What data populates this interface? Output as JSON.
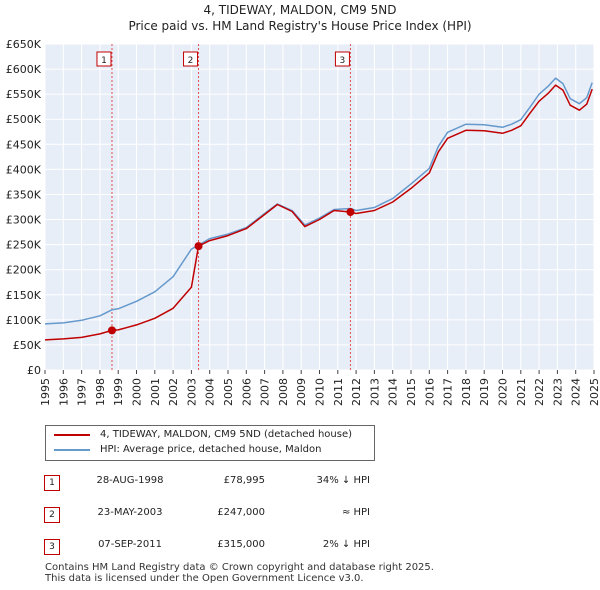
{
  "title": {
    "line1": "4, TIDEWAY, MALDON, CM9 5ND",
    "line2": "Price paid vs. HM Land Registry's House Price Index (HPI)"
  },
  "chart_data": {
    "type": "line",
    "ylim": [
      0,
      650000
    ],
    "xlim": [
      1995,
      2025
    ],
    "y_ticks": [
      0,
      50000,
      100000,
      150000,
      200000,
      250000,
      300000,
      350000,
      400000,
      450000,
      500000,
      550000,
      600000,
      650000
    ],
    "y_tick_labels": [
      "£0",
      "£50K",
      "£100K",
      "£150K",
      "£200K",
      "£250K",
      "£300K",
      "£350K",
      "£400K",
      "£450K",
      "£500K",
      "£550K",
      "£600K",
      "£650K"
    ],
    "x_ticks": [
      1995,
      1996,
      1997,
      1998,
      1999,
      2000,
      2001,
      2002,
      2003,
      2004,
      2005,
      2006,
      2007,
      2008,
      2009,
      2010,
      2011,
      2012,
      2013,
      2014,
      2015,
      2016,
      2017,
      2018,
      2019,
      2020,
      2021,
      2022,
      2023,
      2024,
      2025
    ],
    "x_tick_labels": [
      "1995",
      "1996",
      "1997",
      "1998",
      "1999",
      "2000",
      "2001",
      "2002",
      "2003",
      "2004",
      "2005",
      "2006",
      "2007",
      "2008",
      "2009",
      "2010",
      "2011",
      "2012",
      "2013",
      "2014",
      "2015",
      "2016",
      "2017",
      "2018",
      "2019",
      "2020",
      "2021",
      "2022",
      "2023",
      "2024",
      "2025"
    ],
    "grid": true,
    "series": [
      {
        "name": "4, TIDEWAY, MALDON, CM9 5ND (detached house)",
        "color": "#c00000",
        "x": [
          1995.0,
          1996.0,
          1997.0,
          1998.0,
          1998.66,
          1999.0,
          2000.0,
          2001.0,
          2002.0,
          2003.0,
          2003.39,
          2004.0,
          2005.0,
          2006.0,
          2007.0,
          2007.7,
          2008.5,
          2009.2,
          2010.0,
          2010.8,
          2011.69,
          2012.0,
          2013.0,
          2014.0,
          2015.0,
          2016.0,
          2016.5,
          2017.0,
          2018.0,
          2019.0,
          2020.0,
          2020.5,
          2021.0,
          2021.5,
          2022.0,
          2022.5,
          2022.9,
          2023.3,
          2023.7,
          2024.2,
          2024.6,
          2024.9
        ],
        "y": [
          60000,
          62000,
          65000,
          72000,
          78995,
          80000,
          90000,
          103000,
          123000,
          165000,
          247000,
          258000,
          268000,
          282000,
          310000,
          330000,
          316000,
          286000,
          300000,
          318000,
          315000,
          312000,
          318000,
          335000,
          362000,
          393000,
          435000,
          462000,
          478000,
          477000,
          472000,
          478000,
          487000,
          512000,
          536000,
          552000,
          568000,
          558000,
          528000,
          518000,
          530000,
          560000
        ]
      },
      {
        "name": "HPI: Average price, detached house, Maldon",
        "color": "#6699cc",
        "x": [
          1995.0,
          1996.0,
          1997.0,
          1998.0,
          1998.66,
          1999.0,
          2000.0,
          2001.0,
          2002.0,
          2003.0,
          2003.39,
          2004.0,
          2005.0,
          2006.0,
          2007.0,
          2007.7,
          2008.5,
          2009.2,
          2010.0,
          2010.8,
          2011.69,
          2012.0,
          2013.0,
          2014.0,
          2015.0,
          2016.0,
          2016.5,
          2017.0,
          2018.0,
          2019.0,
          2020.0,
          2020.5,
          2021.0,
          2021.5,
          2022.0,
          2022.5,
          2022.9,
          2023.3,
          2023.7,
          2024.2,
          2024.6,
          2024.9
        ],
        "y": [
          92000,
          94000,
          99000,
          108000,
          120000,
          122000,
          137000,
          156000,
          186000,
          241000,
          249000,
          262000,
          271000,
          284000,
          312000,
          331000,
          318000,
          289000,
          303000,
          320000,
          322000,
          318000,
          324000,
          342000,
          371000,
          402000,
          446000,
          474000,
          490000,
          489000,
          484000,
          490000,
          499000,
          524000,
          550000,
          566000,
          582000,
          571000,
          541000,
          531000,
          543000,
          573000
        ]
      }
    ],
    "sales": [
      {
        "label": "1",
        "x": 1998.66,
        "y": 78995
      },
      {
        "label": "2",
        "x": 2003.39,
        "y": 247000
      },
      {
        "label": "3",
        "x": 2011.69,
        "y": 315000
      }
    ]
  },
  "legend": {
    "property_label": "4, TIDEWAY, MALDON, CM9 5ND (detached house)",
    "hpi_label": "HPI: Average price, detached house, Maldon"
  },
  "sales_table": [
    {
      "num": "1",
      "date": "28-AUG-1998",
      "price": "£78,995",
      "hpi": "34% ↓ HPI"
    },
    {
      "num": "2",
      "date": "23-MAY-2003",
      "price": "£247,000",
      "hpi": "≈ HPI"
    },
    {
      "num": "3",
      "date": "07-SEP-2011",
      "price": "£315,000",
      "hpi": "2% ↓ HPI"
    }
  ],
  "footer": {
    "line1": "Contains HM Land Registry data © Crown copyright and database right 2025.",
    "line2": "This data is licensed under the Open Government Licence v3.0."
  },
  "colors": {
    "property": "#c00000",
    "hpi": "#6699cc",
    "plot_bg": "#e8eef8",
    "grid": "#ffffff"
  }
}
